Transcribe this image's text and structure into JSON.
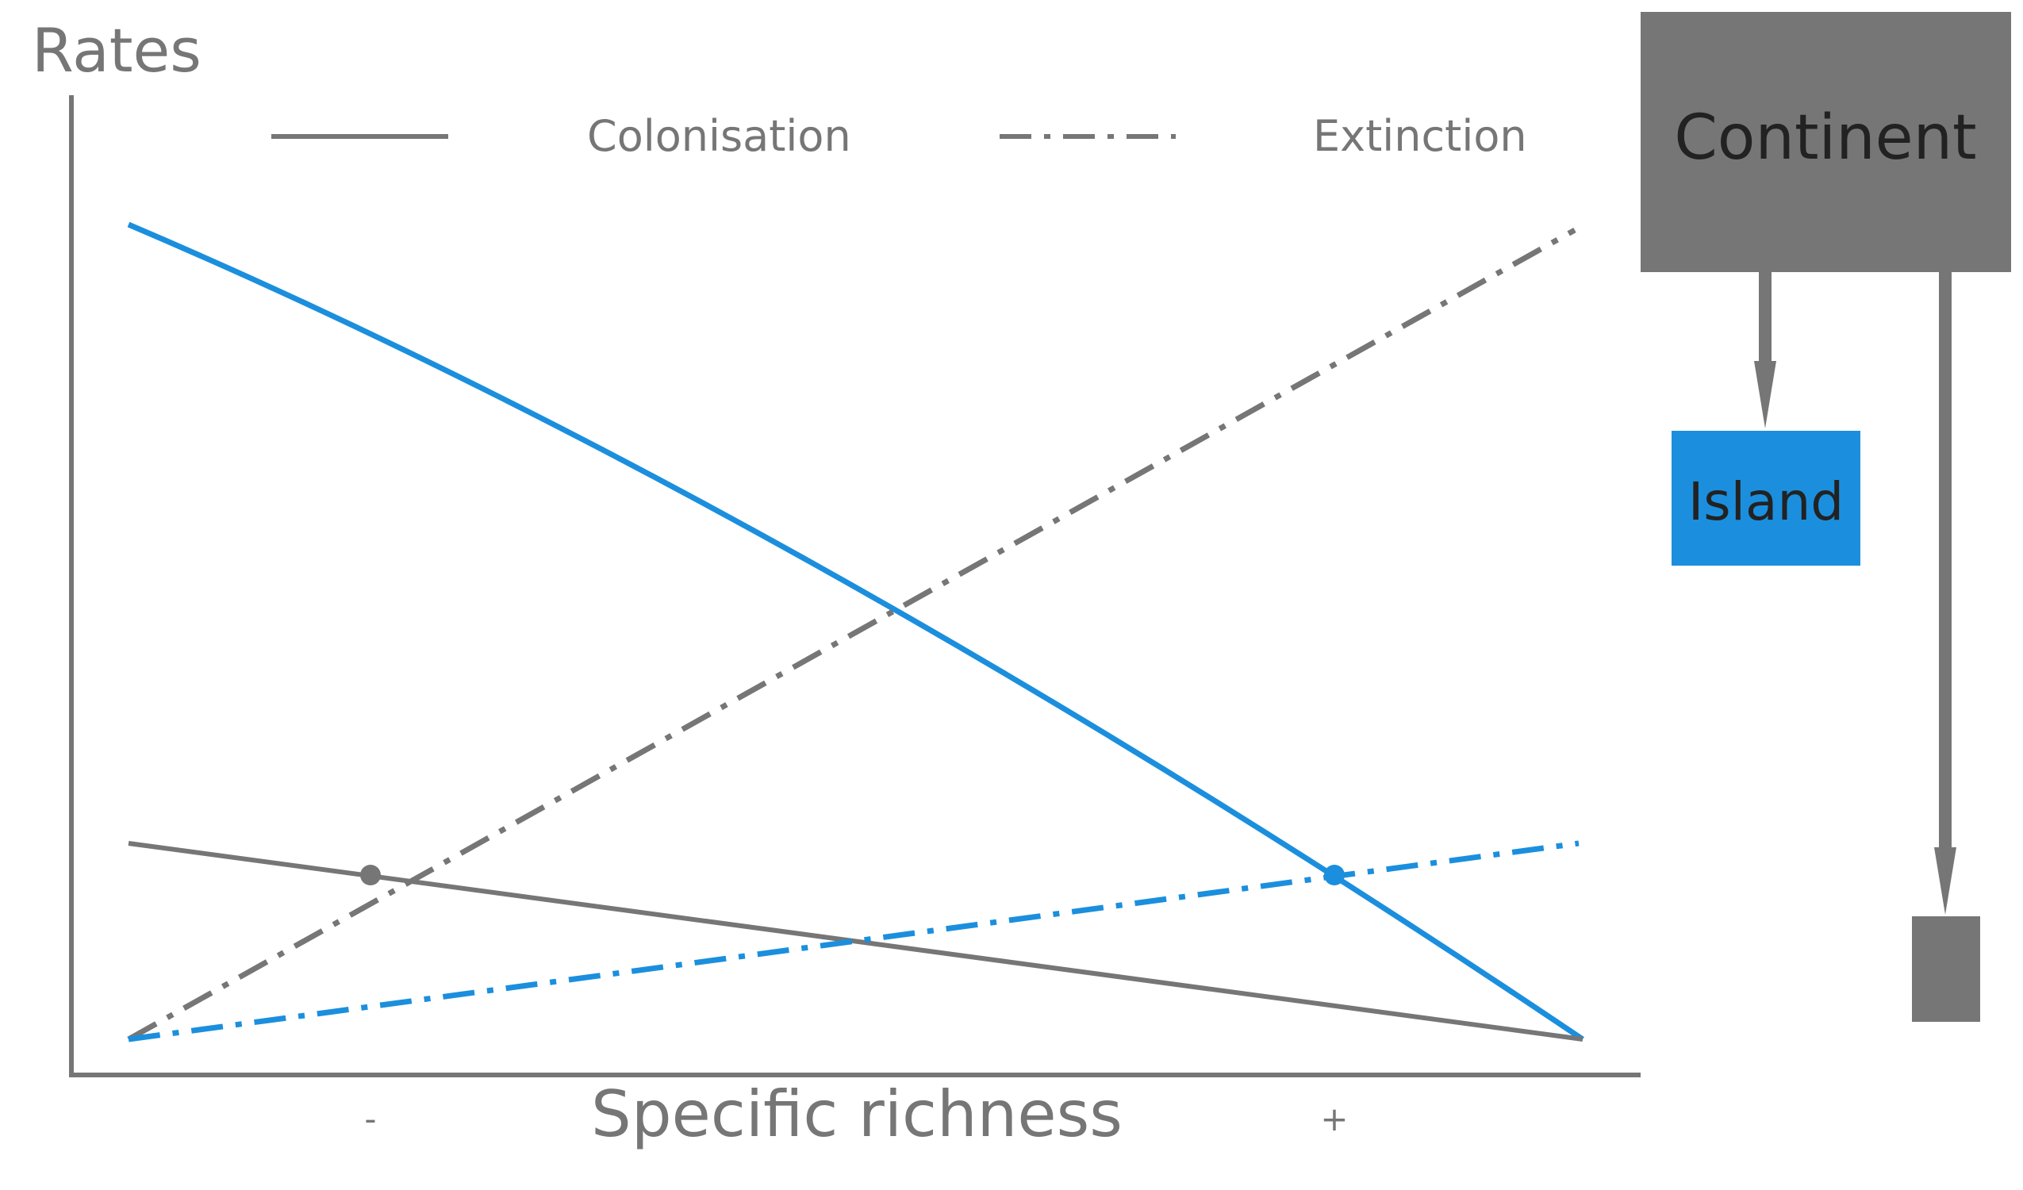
{
  "diagram": {
    "y_axis_label": "Rates",
    "x_axis_label": "Specific richness",
    "x_tick_low": "-",
    "x_tick_high": "+",
    "legend": {
      "solid_label": "Colonisation",
      "dashed_label": "Extinction"
    },
    "boxes": {
      "continent": "Continent",
      "island": "Island",
      "small_island": ""
    },
    "colors": {
      "gray": "#767676",
      "blue": "#1b8fdd",
      "text_dark": "#222222"
    }
  }
}
